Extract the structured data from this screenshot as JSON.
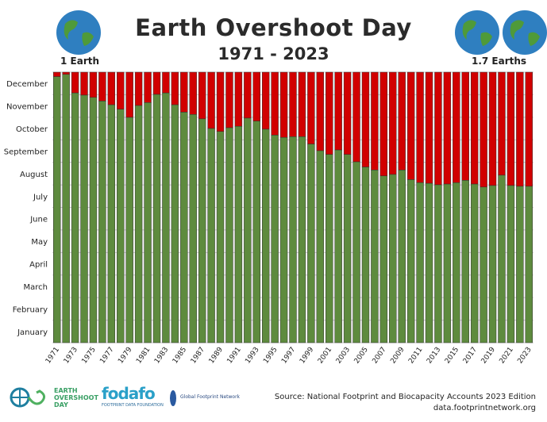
{
  "header": {
    "title": "Earth Overshoot Day",
    "subtitle": "1971 - 2023",
    "left_label": "1 Earth",
    "right_label": "1.7 Earths"
  },
  "chart_data": {
    "type": "bar",
    "stacked": true,
    "title": "Earth Overshoot Day",
    "subtitle": "1971 - 2023",
    "xlabel": "",
    "ylabel": "",
    "y_ticks": [
      "January",
      "February",
      "March",
      "April",
      "May",
      "June",
      "July",
      "August",
      "September",
      "October",
      "November",
      "December"
    ],
    "ylim": [
      "Jan 1",
      "Dec 31"
    ],
    "x_tick_labels": [
      "1971",
      "1973",
      "1975",
      "1977",
      "1979",
      "1981",
      "1983",
      "1985",
      "1987",
      "1989",
      "1991",
      "1993",
      "1995",
      "1997",
      "1999",
      "2001",
      "2003",
      "2005",
      "2007",
      "2009",
      "2011",
      "2013",
      "2015",
      "2017",
      "2019",
      "2021",
      "2023"
    ],
    "categories": [
      "1971",
      "1972",
      "1973",
      "1974",
      "1975",
      "1976",
      "1977",
      "1978",
      "1979",
      "1980",
      "1981",
      "1982",
      "1983",
      "1984",
      "1985",
      "1986",
      "1987",
      "1988",
      "1989",
      "1990",
      "1991",
      "1992",
      "1993",
      "1994",
      "1995",
      "1996",
      "1997",
      "1998",
      "1999",
      "2000",
      "2001",
      "2002",
      "2003",
      "2004",
      "2005",
      "2006",
      "2007",
      "2008",
      "2009",
      "2010",
      "2011",
      "2012",
      "2013",
      "2014",
      "2015",
      "2016",
      "2017",
      "2018",
      "2019",
      "2020",
      "2021",
      "2022",
      "2023"
    ],
    "overshoot_dates": [
      "Dec 25",
      "Dec 28",
      "Dec 3",
      "Nov 30",
      "Nov 27",
      "Nov 22",
      "Nov 17",
      "Nov 11",
      "Oct 31",
      "Nov 16",
      "Nov 20",
      "Dec 1",
      "Dec 3",
      "Nov 17",
      "Nov 7",
      "Nov 4",
      "Oct 29",
      "Oct 16",
      "Oct 12",
      "Oct 17",
      "Oct 19",
      "Oct 30",
      "Oct 26",
      "Oct 15",
      "Oct 7",
      "Oct 4",
      "Oct 5",
      "Oct 5",
      "Sep 25",
      "Sep 16",
      "Sep 11",
      "Sep 17",
      "Sep 11",
      "Sep 1",
      "Aug 25",
      "Aug 21",
      "Aug 13",
      "Aug 15",
      "Aug 21",
      "Aug 8",
      "Aug 4",
      "Aug 3",
      "Aug 1",
      "Aug 2",
      "Aug 4",
      "Aug 7",
      "Aug 2",
      "Jul 29",
      "Jul 31",
      "Aug 14",
      "Jul 31",
      "Jul 30",
      "Jul 30"
    ],
    "colors": {
      "before_overshoot": "#5e8b3e",
      "after_overshoot": "#d10000"
    },
    "grid": true,
    "legend": "none"
  },
  "footer": {
    "source": "Source: National Footprint and Biocapacity Accounts 2023 Edition",
    "url": "data.footprintnetwork.org",
    "logos": {
      "eod": "EARTH OVERSHOOT DAY",
      "fodafo": "FODAFO",
      "fodafo_sub": "FOOTPRINT DATA FOUNDATION",
      "gfn": "Global Footprint Network"
    }
  }
}
